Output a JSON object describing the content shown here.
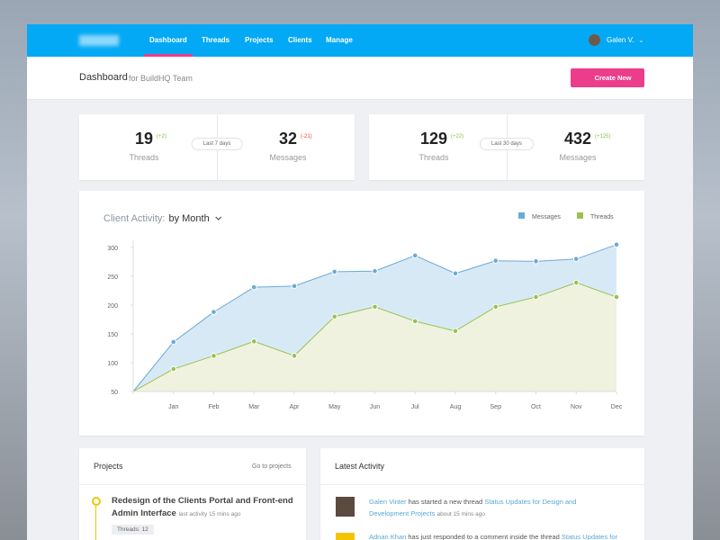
{
  "nav": {
    "items": [
      "Dashboard",
      "Threads",
      "Projects",
      "Clients",
      "Manage"
    ],
    "active": 0,
    "user": "Galen V."
  },
  "header": {
    "title": "Dashboard",
    "subtitle": "for BuildHQ Team",
    "button": "Create New"
  },
  "stats": [
    {
      "period": "Last 7 days",
      "items": [
        {
          "value": 19,
          "change": "(+2)",
          "change_color": "#8bc34a",
          "label": "Threads"
        },
        {
          "value": 32,
          "change": "(-21)",
          "change_color": "#f44336",
          "label": "Messages"
        }
      ]
    },
    {
      "period": "Last 30 days",
      "items": [
        {
          "value": 129,
          "change": "(+22)",
          "change_color": "#8bc34a",
          "label": "Threads"
        },
        {
          "value": 432,
          "change": "(+125)",
          "change_color": "#8bc34a",
          "label": "Messages"
        }
      ]
    }
  ],
  "chart_data": {
    "type": "area",
    "title": "Client Activity:",
    "selector": "by Month",
    "categories": [
      null,
      "Jan",
      "Feb",
      "Mar",
      "Apr",
      "May",
      "Jun",
      "Jul",
      "Aug",
      "Sep",
      "Oct",
      "Nov",
      "Dec"
    ],
    "series": [
      {
        "name": "Messages",
        "color": "#6aaad8",
        "fill": "#d6e8f6",
        "values": [
          50,
          136,
          188,
          231,
          233,
          258,
          259,
          286,
          255,
          277,
          276,
          280,
          305
        ]
      },
      {
        "name": "Threads",
        "color": "#9bc14f",
        "fill": "#eef2de",
        "values": [
          50,
          89,
          112,
          137,
          112,
          180,
          197,
          172,
          155,
          197,
          214,
          239,
          214
        ]
      }
    ],
    "ylim": [
      50,
      300
    ],
    "yticks": [
      50,
      100,
      150,
      200,
      250,
      300
    ],
    "legend": "top-right"
  },
  "projects": {
    "title": "Projects",
    "link": "Go to projects",
    "items": [
      {
        "title": "Redesign of the Clients Portal and Front-end Admin Interface",
        "meta": "last activity 15 mins ago",
        "threads_label": "Threads:",
        "threads": 12
      }
    ]
  },
  "activity": {
    "title": "Latest Activity",
    "items": [
      {
        "user": "Galen Vinter",
        "action": "has started a new thread",
        "target": "Status Updates for Design and Development Projects",
        "time": "about 15 mins ago"
      },
      {
        "user": "Adnan Khan",
        "action": "has just responded to a comment inside the thread",
        "target": "Status Updates for"
      }
    ]
  }
}
